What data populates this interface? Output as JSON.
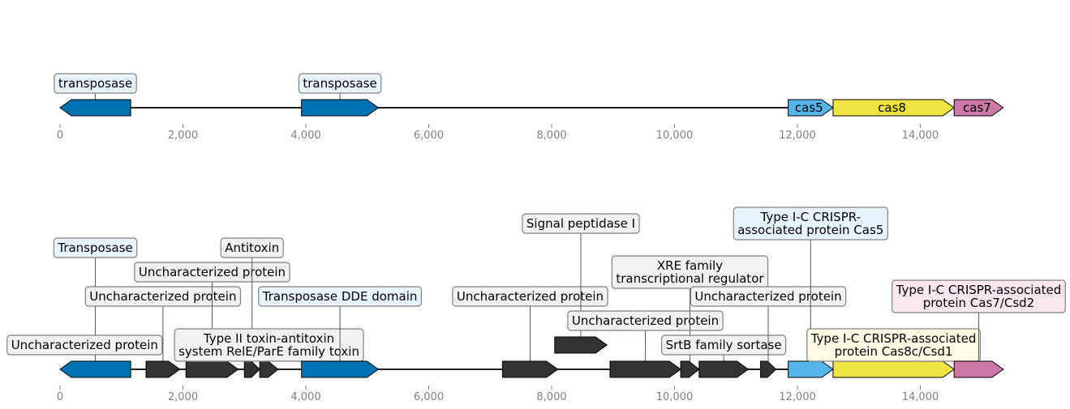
{
  "colors": {
    "transposase": "#0072b2",
    "cas5": "#56b4e9",
    "cas8": "#f0e442",
    "cas7": "#cc79a7",
    "other": "#333333",
    "label_box_blue": "#e8f4fc",
    "label_box_grey": "#f2f2f2",
    "label_box_yellow": "#fffde6",
    "label_box_pink": "#fae8f0"
  },
  "axis": {
    "min": 0,
    "max": 15500,
    "ticks": [
      0,
      2000,
      4000,
      6000,
      8000,
      10000,
      12000,
      14000
    ],
    "tick_labels": [
      "0",
      "2,000",
      "4,000",
      "6,000",
      "8,000",
      "10,000",
      "12,000",
      "14,000"
    ]
  },
  "tracks": [
    {
      "name": "overview",
      "genes": [
        {
          "start": 0,
          "end": 1150,
          "strand": -1,
          "color": "transposase",
          "label": "transposase",
          "label_style": "box",
          "box": "label_box_blue"
        },
        {
          "start": 3930,
          "end": 5180,
          "strand": 1,
          "color": "transposase",
          "label": "transposase",
          "label_style": "box",
          "box": "label_box_blue"
        },
        {
          "start": 11850,
          "end": 12580,
          "strand": 1,
          "color": "cas5",
          "label": "cas5",
          "label_style": "inline"
        },
        {
          "start": 12580,
          "end": 14550,
          "strand": 1,
          "color": "cas8",
          "label": "cas8",
          "label_style": "inline"
        },
        {
          "start": 14550,
          "end": 15350,
          "strand": 1,
          "color": "cas7",
          "label": "cas7",
          "label_style": "inline"
        }
      ]
    },
    {
      "name": "detail",
      "genes": [
        {
          "start": 0,
          "end": 1150,
          "strand": -1,
          "color": "transposase",
          "label": "Transposase",
          "level": 5,
          "box": "label_box_blue"
        },
        {
          "start": 200,
          "end": 600,
          "strand": 1,
          "color": "other",
          "label": "Uncharacterized protein",
          "level": 1,
          "raised": true,
          "box": "label_box_grey"
        },
        {
          "start": 1400,
          "end": 1950,
          "strand": 1,
          "color": "other",
          "label": "Uncharacterized protein",
          "level": 3,
          "box": "label_box_grey"
        },
        {
          "start": 2050,
          "end": 2900,
          "strand": 1,
          "color": "other",
          "label": "Uncharacterized protein",
          "level": 4,
          "box": "label_box_grey"
        },
        {
          "start": 3000,
          "end": 3250,
          "strand": 1,
          "color": "other",
          "label": "Antitoxin",
          "level": 5,
          "box": "label_box_grey"
        },
        {
          "start": 3250,
          "end": 3550,
          "strand": 1,
          "color": "other",
          "label": "Type II toxin-antitoxin\nsystem RelE/ParE family toxin",
          "level": 1,
          "box": "label_box_grey"
        },
        {
          "start": 3930,
          "end": 5180,
          "strand": 1,
          "color": "transposase",
          "label": "Transposase DDE domain",
          "level": 3,
          "box": "label_box_blue"
        },
        {
          "start": 7200,
          "end": 8100,
          "strand": 1,
          "color": "other",
          "label": "Uncharacterized protein",
          "level": 3,
          "box": "label_box_grey"
        },
        {
          "start": 8050,
          "end": 8900,
          "strand": 1,
          "color": "other",
          "label": "Signal peptidase I",
          "level": 6,
          "raised": true,
          "box": "label_box_grey"
        },
        {
          "start": 8950,
          "end": 10100,
          "strand": 1,
          "color": "other",
          "label": "Uncharacterized protein",
          "level": 2,
          "box": "label_box_grey"
        },
        {
          "start": 10100,
          "end": 10400,
          "strand": 1,
          "color": "other",
          "label": "XRE family\ntranscriptional regulator",
          "level": 4,
          "box": "label_box_grey"
        },
        {
          "start": 10400,
          "end": 11200,
          "strand": 1,
          "color": "other",
          "label": "SrtB family sortase",
          "level": 1,
          "box": "label_box_grey"
        },
        {
          "start": 11400,
          "end": 11650,
          "strand": 1,
          "color": "other",
          "label": "Uncharacterized protein",
          "level": 3,
          "box": "label_box_grey"
        },
        {
          "start": 11850,
          "end": 12580,
          "strand": 1,
          "color": "cas5",
          "label": "Type I-C CRISPR-\nassociated protein Cas5",
          "level": 6,
          "box": "label_box_blue"
        },
        {
          "start": 12580,
          "end": 14550,
          "strand": 1,
          "color": "cas8",
          "label": "Type I-C CRISPR-associated\nprotein Cas8c/Csd1",
          "level": 1,
          "box": "label_box_yellow"
        },
        {
          "start": 14550,
          "end": 15350,
          "strand": 1,
          "color": "cas7",
          "label": "Type I-C CRISPR-associated\nprotein Cas7/Csd2",
          "level": 3,
          "box": "label_box_pink"
        }
      ]
    }
  ]
}
